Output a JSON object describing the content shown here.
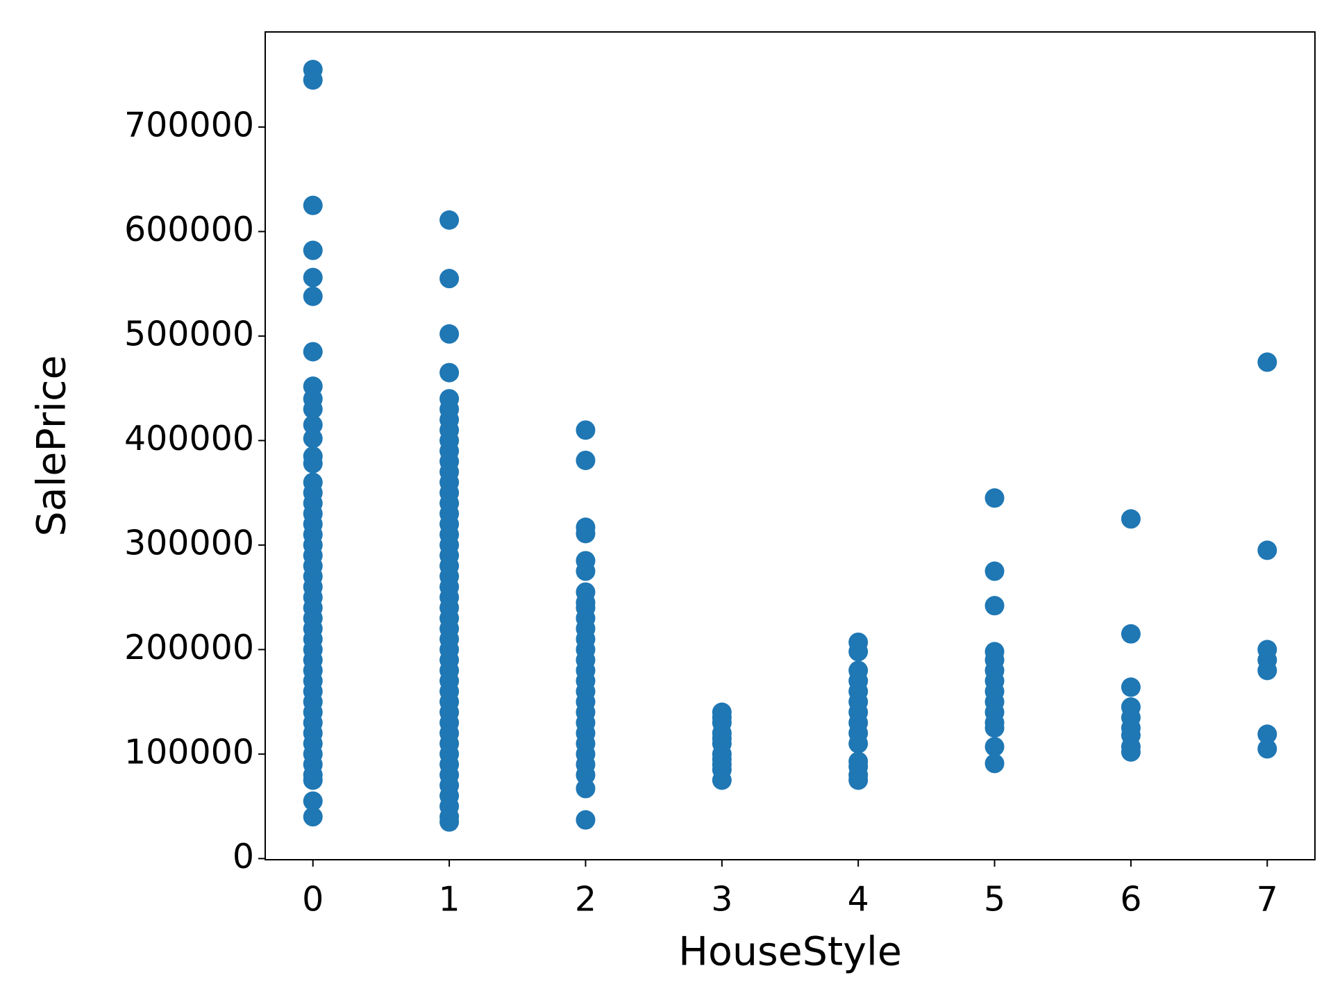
{
  "chart_data": {
    "type": "scatter",
    "xlabel": "HouseStyle",
    "ylabel": "SalePrice",
    "color": "#1f77b4",
    "x": [
      0,
      0,
      0,
      0,
      0,
      0,
      0,
      0,
      0,
      0,
      0,
      0,
      0,
      0,
      0,
      0,
      0,
      0,
      0,
      0,
      0,
      0,
      0,
      0,
      0,
      0,
      0,
      0,
      0,
      0,
      0,
      0,
      0,
      0,
      0,
      0,
      0,
      0,
      0,
      0,
      0,
      0,
      0,
      0,
      0,
      0,
      1,
      1,
      1,
      1,
      1,
      1,
      1,
      1,
      1,
      1,
      1,
      1,
      1,
      1,
      1,
      1,
      1,
      1,
      1,
      1,
      1,
      1,
      1,
      1,
      1,
      1,
      1,
      1,
      1,
      1,
      1,
      1,
      1,
      1,
      1,
      1,
      1,
      1,
      1,
      1,
      1,
      1,
      1,
      1,
      1,
      1,
      2,
      2,
      2,
      2,
      2,
      2,
      2,
      2,
      2,
      2,
      2,
      2,
      2,
      2,
      2,
      2,
      2,
      2,
      2,
      2,
      2,
      2,
      2,
      2,
      2,
      2,
      2,
      3,
      3,
      3,
      3,
      3,
      3,
      3,
      3,
      3,
      3,
      3,
      4,
      4,
      4,
      4,
      4,
      4,
      4,
      4,
      4,
      4,
      4,
      4,
      4,
      4,
      5,
      5,
      5,
      5,
      5,
      5,
      5,
      5,
      5,
      5,
      5,
      5,
      5,
      5,
      6,
      6,
      6,
      6,
      6,
      6,
      6,
      6,
      6,
      7,
      7,
      7,
      7,
      7,
      7,
      7
    ],
    "values": [
      755000,
      745000,
      625000,
      582000,
      556000,
      538000,
      485000,
      452000,
      440000,
      430000,
      415000,
      402000,
      385000,
      378000,
      360000,
      350000,
      340000,
      330000,
      320000,
      310000,
      300000,
      290000,
      280000,
      270000,
      260000,
      250000,
      240000,
      230000,
      220000,
      210000,
      200000,
      190000,
      180000,
      170000,
      160000,
      150000,
      140000,
      130000,
      120000,
      110000,
      100000,
      90000,
      80000,
      75000,
      55000,
      40000,
      611000,
      555000,
      502000,
      465000,
      440000,
      430000,
      420000,
      410000,
      400000,
      390000,
      380000,
      370000,
      360000,
      350000,
      340000,
      330000,
      320000,
      310000,
      300000,
      290000,
      280000,
      270000,
      260000,
      250000,
      240000,
      230000,
      220000,
      210000,
      200000,
      190000,
      180000,
      170000,
      160000,
      150000,
      140000,
      130000,
      120000,
      110000,
      100000,
      90000,
      80000,
      70000,
      60000,
      50000,
      40000,
      35000,
      410000,
      381000,
      317000,
      311000,
      285000,
      275000,
      255000,
      245000,
      240000,
      230000,
      220000,
      210000,
      200000,
      190000,
      180000,
      170000,
      160000,
      150000,
      140000,
      130000,
      120000,
      110000,
      100000,
      90000,
      80000,
      67000,
      37000,
      140000,
      135000,
      130000,
      120000,
      115000,
      110000,
      100000,
      95000,
      90000,
      85000,
      75000,
      207000,
      198000,
      180000,
      170000,
      160000,
      150000,
      140000,
      130000,
      120000,
      110000,
      93000,
      88000,
      80000,
      75000,
      345000,
      275000,
      242000,
      198000,
      190000,
      180000,
      170000,
      160000,
      150000,
      140000,
      130000,
      125000,
      107000,
      91000,
      325000,
      215000,
      164000,
      145000,
      135000,
      125000,
      118000,
      107000,
      102000,
      475000,
      295000,
      200000,
      190000,
      180000,
      119000,
      105000
    ],
    "xlim": [
      -0.35,
      7.35
    ],
    "xticks": [
      0,
      1,
      2,
      3,
      4,
      5,
      6,
      7
    ],
    "ylim": [
      -1100,
      791000
    ],
    "yticks": [
      0,
      100000,
      200000,
      300000,
      400000,
      500000,
      600000,
      700000
    ]
  }
}
